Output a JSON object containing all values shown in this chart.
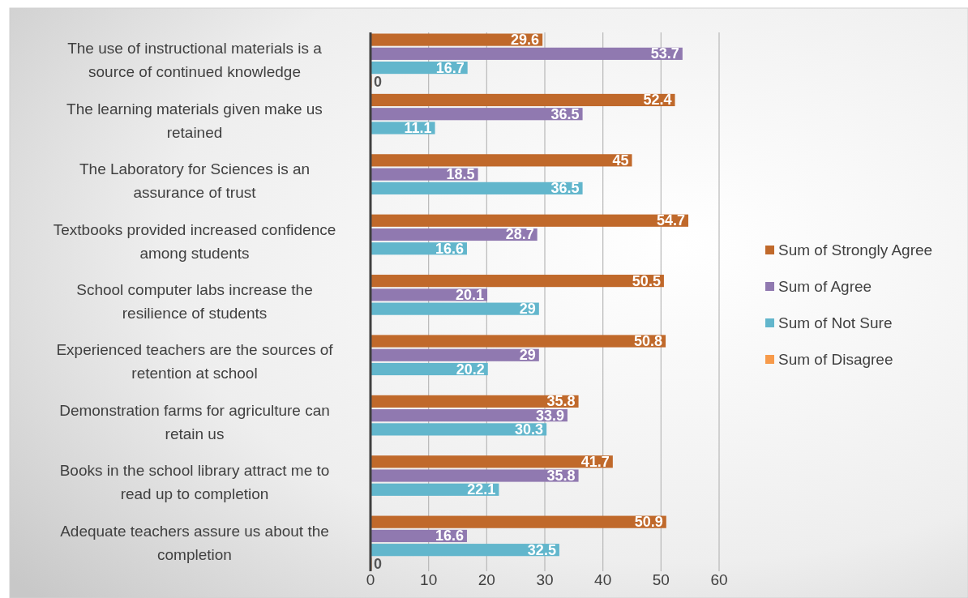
{
  "chart_data": {
    "type": "bar",
    "orientation": "horizontal",
    "categories": [
      "The use of instructional materials is a source of continued knowledge",
      "The learning materials given make us retained",
      "The Laboratory for Sciences is an assurance of trust",
      "Textbooks provided increased confidence among students",
      "School computer labs increase the resilience of students",
      "Experienced teachers are the sources of retention at school",
      "Demonstration farms for agriculture can retain us",
      "Books in the school library attract me to read up to completion",
      "Adequate teachers assure us about the completion"
    ],
    "series": [
      {
        "name": "Sum of Strongly Agree",
        "color": "#c0692b",
        "values": [
          29.6,
          52.4,
          45,
          54.7,
          50.5,
          50.8,
          35.8,
          41.7,
          50.9
        ]
      },
      {
        "name": "Sum of Agree",
        "color": "#9079b0",
        "values": [
          53.7,
          36.5,
          18.5,
          28.7,
          20.1,
          29,
          33.9,
          35.8,
          16.6
        ]
      },
      {
        "name": "Sum of Not Sure",
        "color": "#62b6cc",
        "values": [
          16.7,
          11.1,
          36.5,
          16.6,
          29,
          20.2,
          30.3,
          22.1,
          32.5
        ]
      },
      {
        "name": "Sum of Disagree",
        "color": "#f79a4a",
        "values": [
          0,
          null,
          null,
          null,
          null,
          null,
          null,
          null,
          0
        ]
      }
    ],
    "xlim": [
      0,
      60
    ],
    "xticks": [
      0,
      10,
      20,
      30,
      40,
      50,
      60
    ],
    "grid": "x",
    "legend": "right",
    "data_labels": true
  }
}
